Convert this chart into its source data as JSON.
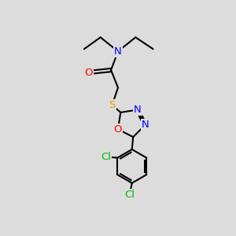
{
  "background_color": "#dcdcdc",
  "bond_color": "#000000",
  "atom_colors": {
    "N": "#0000ff",
    "O": "#ff0000",
    "S": "#ccaa00",
    "Cl": "#00bb00",
    "C": "#000000"
  },
  "font_size": 9.5,
  "fig_width": 3.0,
  "fig_height": 3.0,
  "dpi": 100
}
